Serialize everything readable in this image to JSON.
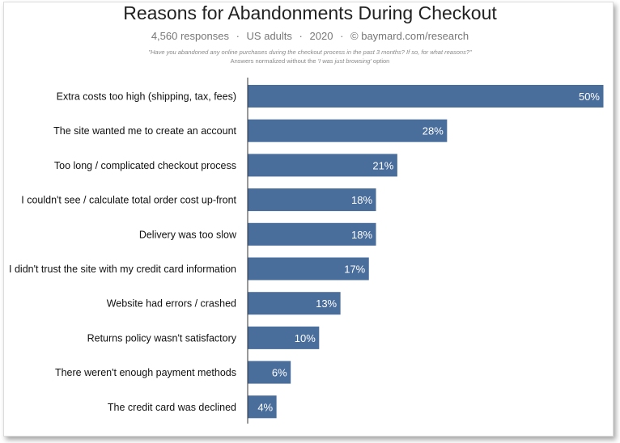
{
  "header": {
    "title": "Reasons for Abandonments During Checkout",
    "subtitle": {
      "responses": "4,560 responses",
      "audience": "US adults",
      "year": "2020",
      "source": "© baymard.com/research",
      "separator": "·"
    },
    "question": "\"Have you abandoned any online purchases during the checkout process in the past 3 months? If so, for what reasons?\"",
    "note_prefix": "Answers normalized without the ",
    "note_italic": "'I was just browsing'",
    "note_suffix": " option"
  },
  "chart_data": {
    "type": "bar",
    "orientation": "horizontal",
    "categories": [
      "Extra costs too high (shipping, tax, fees)",
      "The site wanted me to create an account",
      "Too long / complicated checkout process",
      "I couldn't see / calculate total order cost up-front",
      "Delivery was too slow",
      "I didn't trust the site with my credit card information",
      "Website had errors / crashed",
      "Returns policy wasn't satisfactory",
      "There weren't enough payment methods",
      "The credit card was declined"
    ],
    "values": [
      50,
      28,
      21,
      18,
      18,
      17,
      13,
      10,
      6,
      4
    ],
    "value_labels": [
      "50%",
      "28%",
      "21%",
      "18%",
      "18%",
      "17%",
      "13%",
      "10%",
      "6%",
      "4%"
    ],
    "xlim": [
      0,
      50
    ],
    "bar_color": "#4a6e9c",
    "grid": false,
    "legend": "none"
  }
}
